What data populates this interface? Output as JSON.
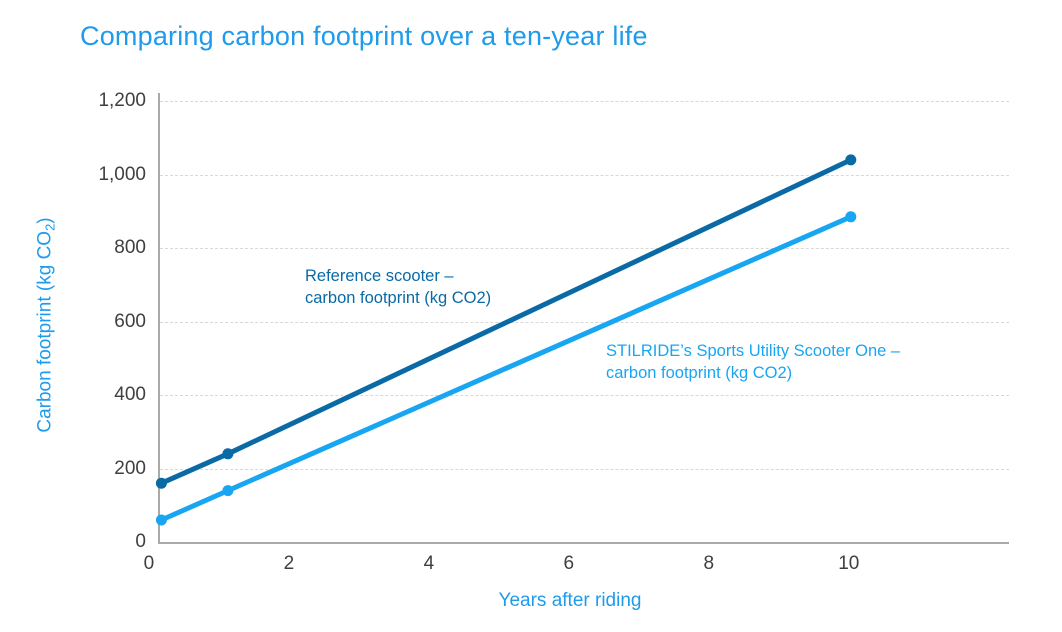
{
  "page": {
    "background": "#ffffff"
  },
  "colors": {
    "accent": "#1e9beb",
    "axis_line": "#a9a9a9",
    "grid_line": "#d8d8d8",
    "tick_text": "#3f3f3f",
    "reference_series": "#0a6aa6",
    "stilride_series": "#18a6f2"
  },
  "labels": {
    "y_axis_main": "Carbon footprint (kg CO",
    "y_axis_sub": "2",
    "y_axis_close": ")"
  },
  "annotations": {
    "reference": {
      "line1": "Reference scooter –",
      "line2": "carbon footprint (kg CO2)"
    },
    "stilride": {
      "line1": "STILRIDE’s Sports Utility Scooter One –",
      "line2": "carbon footprint (kg CO2)"
    }
  },
  "chart_data": {
    "type": "line",
    "title": "Comparing carbon footprint over a ten-year life",
    "xlabel": "Years after riding",
    "ylabel": "Carbon footprint (kg CO2)",
    "x_tick_values": [
      0,
      2,
      4,
      6,
      8,
      10
    ],
    "x_tick_labels": [
      "0",
      "2",
      "4",
      "6",
      "8",
      "10"
    ],
    "y_tick_values": [
      0,
      200,
      400,
      600,
      800,
      1000,
      1200
    ],
    "y_tick_labels": [
      "0",
      "200",
      "400",
      "600",
      "800",
      "1,000",
      "1,200"
    ],
    "xlim": [
      0.13,
      12.26
    ],
    "ylim": [
      0,
      1222
    ],
    "grid": "horizontal-dashed",
    "legend_position": "inline-annotations",
    "series": [
      {
        "name": "Reference scooter – carbon footprint (kg CO2)",
        "color": "#0a6aa6",
        "x": [
          0.15,
          1.1,
          10
        ],
        "y": [
          160,
          240,
          1040
        ]
      },
      {
        "name": "STILRIDE’s Sports Utility Scooter One – carbon footprint (kg CO2)",
        "color": "#18a6f2",
        "x": [
          0.15,
          1.1,
          10
        ],
        "y": [
          60,
          140,
          885
        ]
      }
    ]
  }
}
